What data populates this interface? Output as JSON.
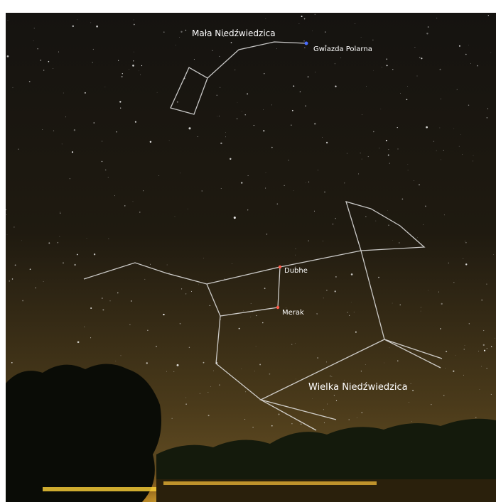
{
  "labels": {
    "little_dipper": "Mała Niedźwiedzica",
    "polaris": "Gwiazda Polarna",
    "dubhe": "Dubhe",
    "merak": "Merak",
    "big_dipper": "Wielka Niedźwiedzica"
  }
}
